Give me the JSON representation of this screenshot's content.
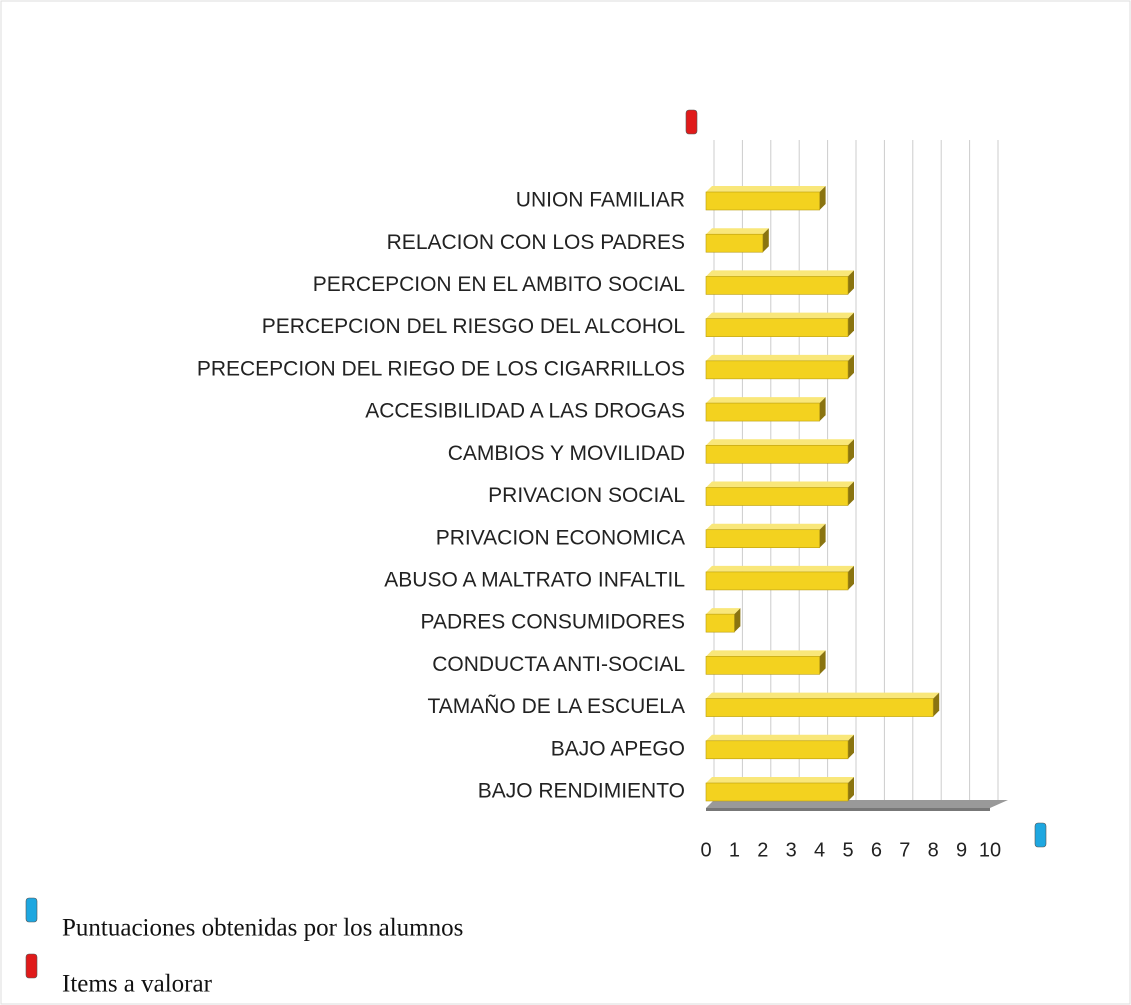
{
  "chart_data": {
    "type": "bar3d_horizontal",
    "categories": [
      "UNION FAMILIAR",
      "RELACION CON LOS PADRES",
      "PERCEPCION EN EL AMBITO SOCIAL",
      "PERCEPCION DEL RIESGO DEL ALCOHOL",
      "PRECEPCION DEL RIEGO DE LOS CIGARRILLOS",
      "ACCESIBILIDAD A LAS DROGAS",
      "CAMBIOS Y MOVILIDAD",
      "PRIVACION SOCIAL",
      "PRIVACION ECONOMICA",
      "ABUSO A MALTRATO INFALTIL",
      "PADRES CONSUMIDORES",
      "CONDUCTA ANTI-SOCIAL",
      "TAMAÑO DE LA ESCUELA",
      "BAJO APEGO",
      "BAJO RENDIMIENTO"
    ],
    "values": [
      4,
      2,
      5,
      5,
      5,
      4,
      5,
      5,
      4,
      5,
      1,
      4,
      8,
      5,
      5
    ],
    "color": "#f3d21f",
    "xlim": [
      0,
      10
    ],
    "xticks": [
      0,
      1,
      2,
      3,
      4,
      5,
      6,
      7,
      8,
      9,
      10
    ],
    "grid": true,
    "legend": [
      {
        "name": "Puntuaciones obtenidas por los alumnos",
        "color": "#1ea7e0"
      },
      {
        "name": "Items a valorar",
        "color": "#e01b1b"
      }
    ]
  }
}
